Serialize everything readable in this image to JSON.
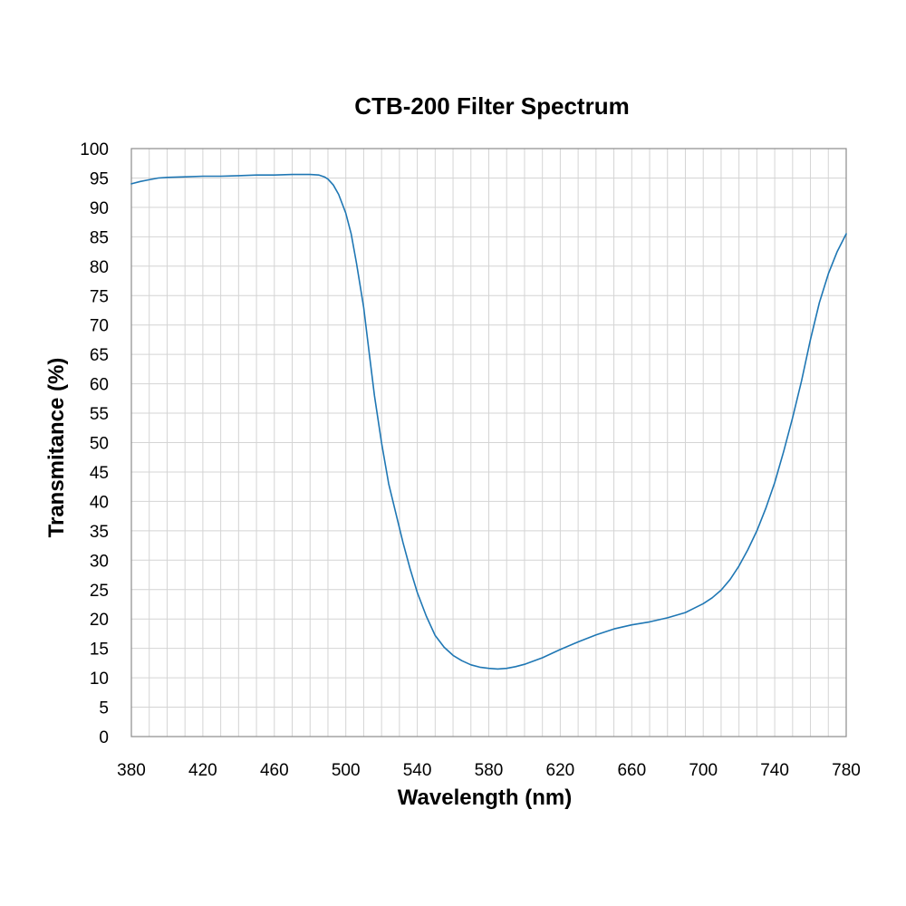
{
  "chart_data": {
    "type": "line",
    "title": "CTB-200 Filter Spectrum",
    "xlabel": "Wavelength (nm)",
    "ylabel": "Transmitance (%)",
    "xlim": [
      380,
      780
    ],
    "ylim": [
      0,
      100
    ],
    "x_ticks": [
      380,
      420,
      460,
      500,
      540,
      580,
      620,
      660,
      700,
      740,
      780
    ],
    "y_ticks": [
      0,
      5,
      10,
      15,
      20,
      25,
      30,
      35,
      40,
      45,
      50,
      55,
      60,
      65,
      70,
      75,
      80,
      85,
      90,
      95,
      100
    ],
    "grid": true,
    "legend": "none",
    "series": [
      {
        "color": "#1f77b4",
        "x": [
          380,
          385,
          390,
          395,
          400,
          410,
          420,
          430,
          440,
          450,
          460,
          470,
          475,
          480,
          485,
          488,
          490,
          493,
          496,
          500,
          503,
          506,
          510,
          513,
          516,
          520,
          524,
          528,
          532,
          536,
          540,
          545,
          550,
          555,
          560,
          565,
          570,
          575,
          580,
          585,
          590,
          595,
          600,
          610,
          620,
          630,
          640,
          650,
          660,
          670,
          680,
          690,
          700,
          705,
          710,
          715,
          720,
          725,
          730,
          735,
          740,
          745,
          750,
          755,
          760,
          765,
          770,
          775,
          780
        ],
        "y": [
          94.0,
          94.4,
          94.7,
          95.0,
          95.1,
          95.2,
          95.3,
          95.3,
          95.4,
          95.5,
          95.5,
          95.6,
          95.6,
          95.6,
          95.5,
          95.2,
          94.8,
          93.8,
          92.2,
          89.0,
          85.5,
          80.5,
          73.0,
          65.5,
          58.0,
          50.0,
          43.0,
          38.0,
          33.0,
          28.5,
          24.5,
          20.5,
          17.2,
          15.2,
          13.8,
          12.9,
          12.2,
          11.8,
          11.6,
          11.5,
          11.6,
          11.9,
          12.3,
          13.4,
          14.8,
          16.1,
          17.3,
          18.3,
          19.0,
          19.5,
          20.2,
          21.1,
          22.6,
          23.6,
          24.9,
          26.7,
          29.0,
          31.8,
          35.0,
          38.8,
          43.2,
          48.5,
          54.2,
          60.5,
          67.5,
          73.8,
          78.7,
          82.5,
          85.5
        ]
      }
    ]
  }
}
